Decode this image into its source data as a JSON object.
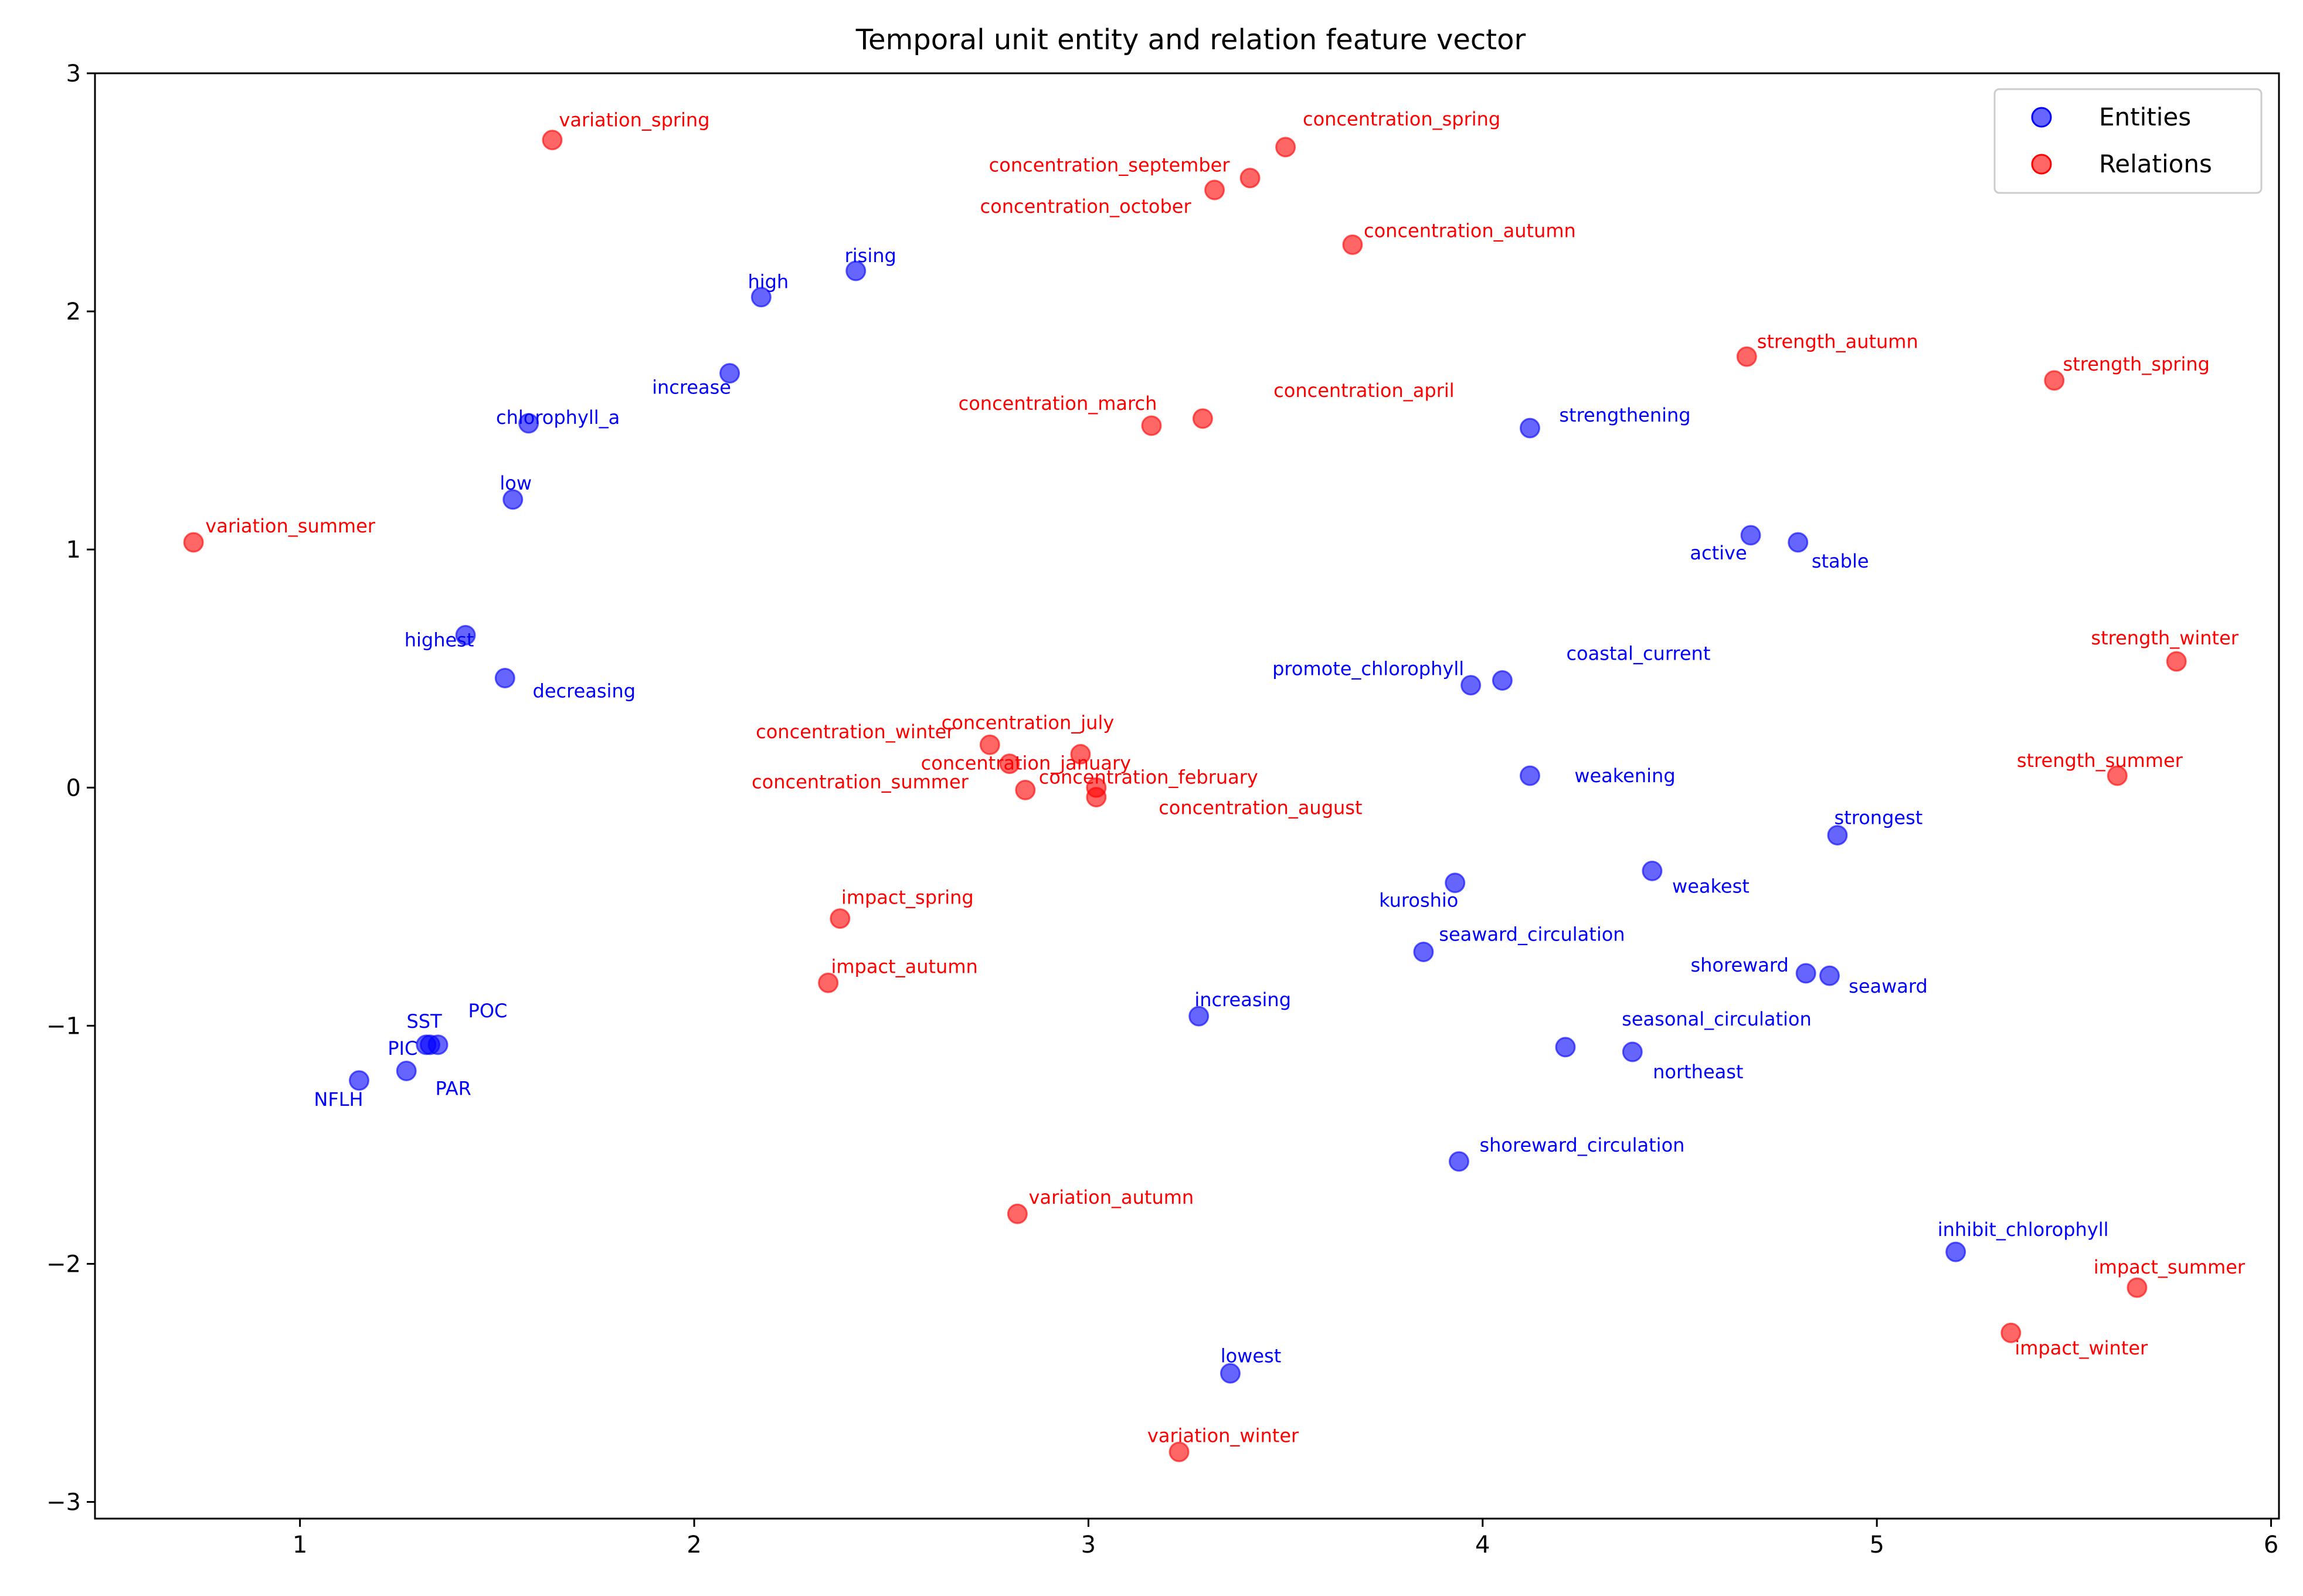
{
  "chart_data": {
    "type": "scatter",
    "title": "Temporal unit entity and relation feature vector",
    "xlabel": "",
    "ylabel": "",
    "xlim": [
      0.48,
      6.02
    ],
    "ylim": [
      -3.07,
      3.0
    ],
    "xticks": [
      1,
      2,
      3,
      4,
      5,
      6
    ],
    "yticks": [
      -3,
      -2,
      -1,
      0,
      1,
      2,
      3
    ],
    "xtick_labels": [
      "1",
      "2",
      "3",
      "4",
      "5",
      "6"
    ],
    "ytick_labels": [
      "−3",
      "−2",
      "−1",
      "0",
      "1",
      "2",
      "3"
    ],
    "grid": false,
    "legend_position": "top-right",
    "series": [
      {
        "name": "Entities",
        "color": "#0000ff",
        "points": [
          {
            "label": "rising",
            "x": 2.41,
            "y": 2.17
          },
          {
            "label": "high",
            "x": 2.17,
            "y": 2.06
          },
          {
            "label": "increase",
            "x": 2.09,
            "y": 1.74
          },
          {
            "label": "chlorophyll_a",
            "x": 1.58,
            "y": 1.53
          },
          {
            "label": "low",
            "x": 1.54,
            "y": 1.21
          },
          {
            "label": "highest",
            "x": 1.42,
            "y": 0.64
          },
          {
            "label": "decreasing",
            "x": 1.52,
            "y": 0.46
          },
          {
            "label": "strengthening",
            "x": 4.12,
            "y": 1.51
          },
          {
            "label": "active",
            "x": 4.68,
            "y": 1.06
          },
          {
            "label": "stable",
            "x": 4.8,
            "y": 1.03
          },
          {
            "label": "promote_chlorophyll",
            "x": 3.97,
            "y": 0.43
          },
          {
            "label": "coastal_current",
            "x": 4.05,
            "y": 0.45
          },
          {
            "label": "weakening",
            "x": 4.12,
            "y": 0.05
          },
          {
            "label": "strongest",
            "x": 4.9,
            "y": -0.2
          },
          {
            "label": "kuroshio",
            "x": 3.93,
            "y": -0.4
          },
          {
            "label": "weakest",
            "x": 4.43,
            "y": -0.35
          },
          {
            "label": "seaward_circulation",
            "x": 3.85,
            "y": -0.69
          },
          {
            "label": "shoreward",
            "x": 4.82,
            "y": -0.78
          },
          {
            "label": "seaward",
            "x": 4.88,
            "y": -0.79
          },
          {
            "label": "increasing",
            "x": 3.28,
            "y": -0.96
          },
          {
            "label": "seasonal_circulation",
            "x": 4.21,
            "y": -1.09
          },
          {
            "label": "northeast",
            "x": 4.38,
            "y": -1.11
          },
          {
            "label": "shoreward_circulation",
            "x": 3.94,
            "y": -1.57
          },
          {
            "label": "inhibit_chlorophyll",
            "x": 5.2,
            "y": -1.95
          },
          {
            "label": "lowest",
            "x": 3.36,
            "y": -2.46
          },
          {
            "label": "SST",
            "x": 1.33,
            "y": -1.08
          },
          {
            "label": "POC",
            "x": 1.35,
            "y": -1.08
          },
          {
            "label": "PIC",
            "x": 1.32,
            "y": -1.08
          },
          {
            "label": "PAR",
            "x": 1.27,
            "y": -1.19
          },
          {
            "label": "NFLH",
            "x": 1.15,
            "y": -1.23
          }
        ]
      },
      {
        "name": "Relations",
        "color": "#ff0000",
        "points": [
          {
            "label": "variation_spring",
            "x": 1.64,
            "y": 2.72
          },
          {
            "label": "concentration_spring",
            "x": 3.5,
            "y": 2.69
          },
          {
            "label": "concentration_september",
            "x": 3.41,
            "y": 2.56
          },
          {
            "label": "concentration_october",
            "x": 3.32,
            "y": 2.51
          },
          {
            "label": "concentration_autumn",
            "x": 3.67,
            "y": 2.28
          },
          {
            "label": "strength_autumn",
            "x": 4.67,
            "y": 1.81
          },
          {
            "label": "strength_spring",
            "x": 5.45,
            "y": 1.71
          },
          {
            "label": "concentration_march",
            "x": 3.16,
            "y": 1.52
          },
          {
            "label": "concentration_april",
            "x": 3.29,
            "y": 1.55
          },
          {
            "label": "variation_summer",
            "x": 0.73,
            "y": 1.03
          },
          {
            "label": "strength_winter",
            "x": 5.76,
            "y": 0.53
          },
          {
            "label": "concentration_winter",
            "x": 2.75,
            "y": 0.18
          },
          {
            "label": "concentration_summer",
            "x": 2.8,
            "y": 0.1
          },
          {
            "label": "concentration_july",
            "x": 2.98,
            "y": 0.14
          },
          {
            "label": "concentration_february",
            "x": 2.84,
            "y": -0.01
          },
          {
            "label": "concentration_january",
            "x": 3.02,
            "y": 0.0
          },
          {
            "label": "concentration_august",
            "x": 3.02,
            "y": -0.04
          },
          {
            "label": "strength_summer",
            "x": 5.61,
            "y": 0.05
          },
          {
            "label": "impact_spring",
            "x": 2.37,
            "y": -0.55
          },
          {
            "label": "impact_autumn",
            "x": 2.34,
            "y": -0.82
          },
          {
            "label": "variation_autumn",
            "x": 2.82,
            "y": -1.79
          },
          {
            "label": "impact_summer",
            "x": 5.66,
            "y": -2.1
          },
          {
            "label": "impact_winter",
            "x": 5.34,
            "y": -2.29
          },
          {
            "label": "variation_winter",
            "x": 3.23,
            "y": -2.79
          }
        ]
      }
    ]
  }
}
